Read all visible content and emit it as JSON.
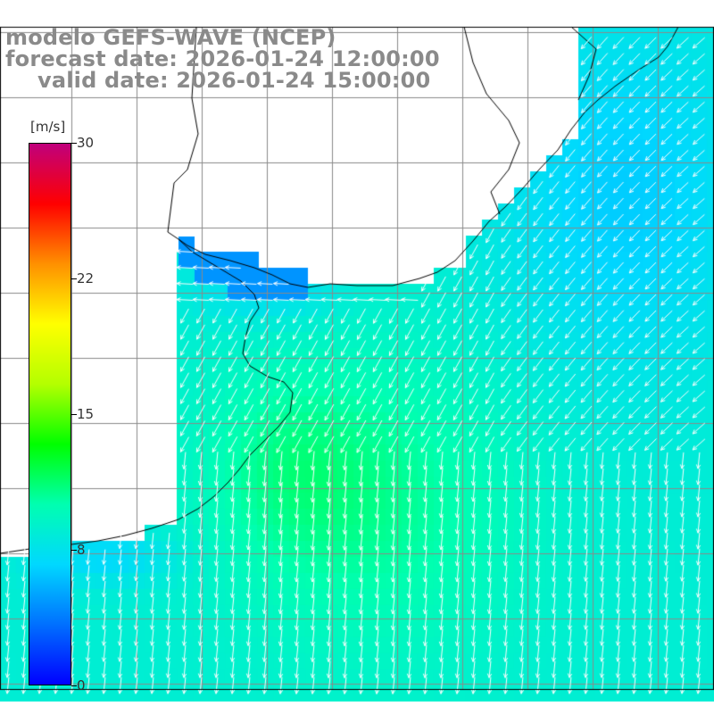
{
  "title": {
    "model": "modelo GEFS-WAVE (NCEP)",
    "forecast": "forecast date: 2026-01-24 12:00:00",
    "valid": "valid date: 2026-01-24 15:00:00"
  },
  "colorbar": {
    "units": "[m/s]",
    "min": 0,
    "max": 30,
    "ticks": [
      {
        "value": 30,
        "label": "30"
      },
      {
        "value": 22.5,
        "label": "22"
      },
      {
        "value": 15,
        "label": "15"
      },
      {
        "value": 7.5,
        "label": "8"
      },
      {
        "value": 0,
        "label": "0"
      }
    ],
    "colors": [
      "#0000ff",
      "#0070ff",
      "#00d8ff",
      "#00ffb0",
      "#00ff00",
      "#b4ff00",
      "#ffff00",
      "#ff9000",
      "#ff0000",
      "#c0007c"
    ]
  },
  "map": {
    "land_color": "#ffffff",
    "grid_color": "#8a8a8a",
    "coast_color": "#000000",
    "arrow_color": "#ffffff",
    "wind_direction": "from north-east / north toward south-west and south"
  }
}
